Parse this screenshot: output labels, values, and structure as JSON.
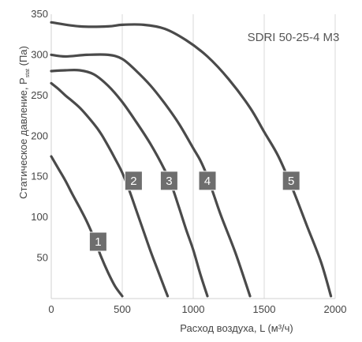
{
  "chart_data": {
    "type": "line",
    "title": "SDRI 50-25-4 M3",
    "xlabel": "Расход воздуха, L (м³/ч)",
    "ylabel": "Статическое давление, P",
    "ylabel_sub": "stat",
    "ylabel_unit": "(Па)",
    "xlim": [
      0,
      2000
    ],
    "ylim": [
      0,
      350
    ],
    "x_ticks": [
      0,
      500,
      1000,
      1500,
      2000
    ],
    "y_ticks": [
      50,
      100,
      150,
      200,
      250,
      300,
      350
    ],
    "grid": "vertical",
    "series": [
      {
        "name": "1",
        "points": [
          [
            0,
            175
          ],
          [
            50,
            160
          ],
          [
            100,
            145
          ],
          [
            150,
            128
          ],
          [
            200,
            112
          ],
          [
            250,
            95
          ],
          [
            300,
            75
          ],
          [
            350,
            52
          ],
          [
            400,
            32
          ],
          [
            450,
            15
          ],
          [
            500,
            3
          ]
        ],
        "label_at": [
          330,
          70
        ]
      },
      {
        "name": "2",
        "points": [
          [
            0,
            265
          ],
          [
            50,
            258
          ],
          [
            100,
            250
          ],
          [
            200,
            235
          ],
          [
            300,
            215
          ],
          [
            350,
            203
          ],
          [
            400,
            188
          ],
          [
            450,
            172
          ],
          [
            500,
            155
          ],
          [
            550,
            133
          ],
          [
            600,
            108
          ],
          [
            650,
            83
          ],
          [
            700,
            58
          ],
          [
            750,
            35
          ],
          [
            800,
            12
          ],
          [
            820,
            3
          ]
        ],
        "label_at": [
          580,
          145
        ]
      },
      {
        "name": "3",
        "points": [
          [
            0,
            280
          ],
          [
            100,
            281
          ],
          [
            200,
            281
          ],
          [
            300,
            276
          ],
          [
            400,
            262
          ],
          [
            500,
            242
          ],
          [
            600,
            217
          ],
          [
            700,
            190
          ],
          [
            800,
            158
          ],
          [
            850,
            138
          ],
          [
            900,
            112
          ],
          [
            950,
            85
          ],
          [
            1000,
            60
          ],
          [
            1050,
            30
          ],
          [
            1100,
            3
          ]
        ],
        "label_at": [
          830,
          145
        ]
      },
      {
        "name": "4",
        "points": [
          [
            0,
            300
          ],
          [
            100,
            298
          ],
          [
            250,
            300
          ],
          [
            400,
            300
          ],
          [
            500,
            295
          ],
          [
            600,
            280
          ],
          [
            700,
            262
          ],
          [
            800,
            240
          ],
          [
            900,
            215
          ],
          [
            1000,
            185
          ],
          [
            1050,
            170
          ],
          [
            1100,
            150
          ],
          [
            1150,
            125
          ],
          [
            1200,
            100
          ],
          [
            1300,
            55
          ],
          [
            1400,
            3
          ]
        ],
        "label_at": [
          1100,
          145
        ]
      },
      {
        "name": "5",
        "points": [
          [
            0,
            340
          ],
          [
            200,
            335
          ],
          [
            400,
            335
          ],
          [
            500,
            337
          ],
          [
            650,
            337
          ],
          [
            800,
            332
          ],
          [
            950,
            318
          ],
          [
            1100,
            298
          ],
          [
            1250,
            270
          ],
          [
            1400,
            235
          ],
          [
            1500,
            205
          ],
          [
            1600,
            175
          ],
          [
            1700,
            135
          ],
          [
            1800,
            90
          ],
          [
            1900,
            45
          ],
          [
            1970,
            3
          ]
        ],
        "label_at": [
          1690,
          145
        ]
      }
    ]
  }
}
